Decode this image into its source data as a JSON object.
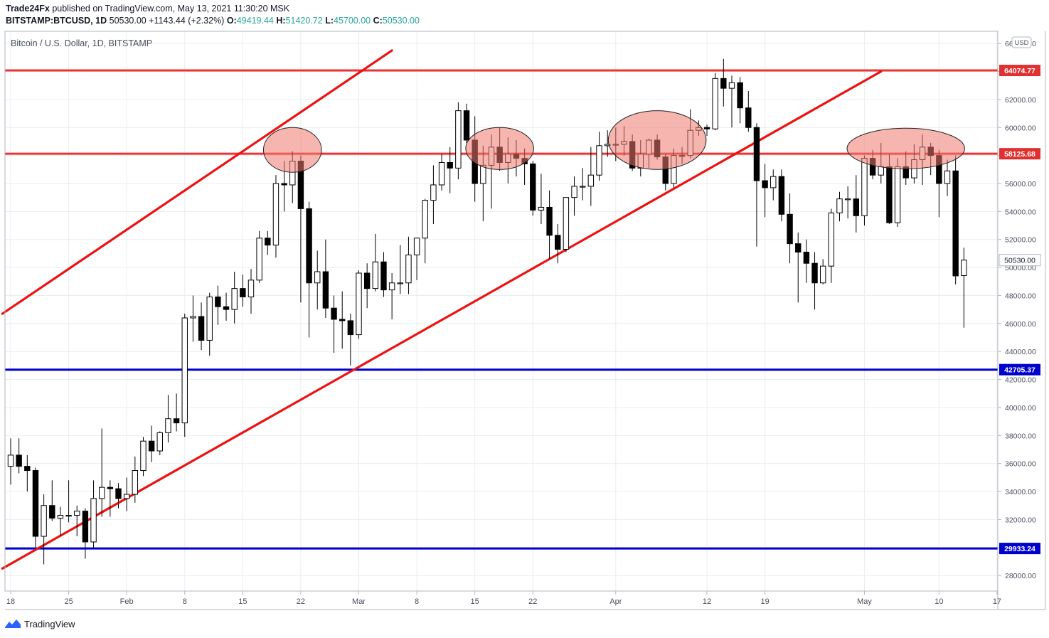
{
  "header": {
    "publisher": "Trade24Fx",
    "published_text": "published on TradingView.com, May 13, 2021 11:30:20 MSK",
    "symbol": "BITSTAMP:BTCUSD",
    "interval": "1D",
    "last": "50530.00",
    "change": "+1143.44 (+2.32%)",
    "o_label": "O:",
    "o_value": "49419.44",
    "h_label": "H:",
    "h_value": "51420.72",
    "l_label": "L:",
    "l_value": "45700.00",
    "c_label": "C:",
    "c_value": "50530.00"
  },
  "footer": {
    "brand": "TradingView"
  },
  "colors": {
    "up_body": "#ffffff",
    "down_body": "#000000",
    "candle_outline": "#000000",
    "trend_line": "#ee1111",
    "resistance": "#ee3333",
    "support": "#0000cc",
    "circle_fill": "rgba(240,120,110,0.55)",
    "grid": "#e8edf2"
  },
  "chart_data": {
    "type": "candlestick",
    "title": "Bitcoin / U.S. Dollar, 1D, BITSTAMP",
    "currency": "USD",
    "ylim": [
      26000,
      66500
    ],
    "y_ticks": [
      28000,
      30000,
      32000,
      34000,
      36000,
      38000,
      40000,
      42000,
      44000,
      46000,
      48000,
      50000,
      52000,
      54000,
      56000,
      58000,
      60000,
      62000,
      64000,
      66000
    ],
    "x_ticks": [
      {
        "label": "18",
        "day": 0
      },
      {
        "label": "25",
        "day": 7
      },
      {
        "label": "Feb",
        "day": 14
      },
      {
        "label": "8",
        "day": 21
      },
      {
        "label": "15",
        "day": 28
      },
      {
        "label": "22",
        "day": 35
      },
      {
        "label": "Mar",
        "day": 42
      },
      {
        "label": "8",
        "day": 49
      },
      {
        "label": "15",
        "day": 56
      },
      {
        "label": "22",
        "day": 63
      },
      {
        "label": "Apr",
        "day": 73
      },
      {
        "label": "12",
        "day": 84
      },
      {
        "label": "19",
        "day": 91
      },
      {
        "label": "May",
        "day": 103
      },
      {
        "label": "10",
        "day": 112
      },
      {
        "label": "17",
        "day": 119
      }
    ],
    "candles": [
      {
        "day": -1,
        "o": 35800,
        "h": 36500,
        "l": 34800,
        "c": 35900
      },
      {
        "day": 0,
        "o": 35800,
        "h": 37800,
        "l": 34500,
        "c": 36600
      },
      {
        "day": 1,
        "o": 36600,
        "h": 37800,
        "l": 35300,
        "c": 35800
      },
      {
        "day": 2,
        "o": 35800,
        "h": 36600,
        "l": 34000,
        "c": 35500
      },
      {
        "day": 3,
        "o": 35500,
        "h": 35700,
        "l": 30000,
        "c": 30800
      },
      {
        "day": 4,
        "o": 30800,
        "h": 33800,
        "l": 28800,
        "c": 33000
      },
      {
        "day": 5,
        "o": 33000,
        "h": 34800,
        "l": 31900,
        "c": 32100
      },
      {
        "day": 6,
        "o": 32100,
        "h": 32900,
        "l": 30800,
        "c": 32300
      },
      {
        "day": 7,
        "o": 32300,
        "h": 34800,
        "l": 31800,
        "c": 32300
      },
      {
        "day": 8,
        "o": 32300,
        "h": 33000,
        "l": 30800,
        "c": 32600
      },
      {
        "day": 9,
        "o": 32600,
        "h": 32800,
        "l": 29200,
        "c": 30400
      },
      {
        "day": 10,
        "o": 30400,
        "h": 34800,
        "l": 30000,
        "c": 33500
      },
      {
        "day": 11,
        "o": 33500,
        "h": 38500,
        "l": 32200,
        "c": 34300
      },
      {
        "day": 12,
        "o": 34300,
        "h": 34800,
        "l": 32200,
        "c": 34200
      },
      {
        "day": 13,
        "o": 34200,
        "h": 34600,
        "l": 32800,
        "c": 33500
      },
      {
        "day": 14,
        "o": 33500,
        "h": 35000,
        "l": 32600,
        "c": 33800
      },
      {
        "day": 15,
        "o": 33800,
        "h": 36500,
        "l": 33200,
        "c": 35500
      },
      {
        "day": 16,
        "o": 35500,
        "h": 37900,
        "l": 35100,
        "c": 37600
      },
      {
        "day": 17,
        "o": 37600,
        "h": 38700,
        "l": 36100,
        "c": 36900
      },
      {
        "day": 18,
        "o": 36900,
        "h": 38300,
        "l": 36600,
        "c": 38200
      },
      {
        "day": 19,
        "o": 38200,
        "h": 40900,
        "l": 37500,
        "c": 39200
      },
      {
        "day": 20,
        "o": 39200,
        "h": 41000,
        "l": 38300,
        "c": 38900
      },
      {
        "day": 21,
        "o": 38900,
        "h": 46700,
        "l": 37900,
        "c": 46400
      },
      {
        "day": 22,
        "o": 46400,
        "h": 48000,
        "l": 44700,
        "c": 46500
      },
      {
        "day": 23,
        "o": 46500,
        "h": 47500,
        "l": 44100,
        "c": 44800
      },
      {
        "day": 24,
        "o": 44800,
        "h": 48200,
        "l": 43700,
        "c": 47900
      },
      {
        "day": 25,
        "o": 47900,
        "h": 48700,
        "l": 45900,
        "c": 47200
      },
      {
        "day": 26,
        "o": 47200,
        "h": 48200,
        "l": 46200,
        "c": 47000
      },
      {
        "day": 27,
        "o": 47000,
        "h": 49700,
        "l": 46000,
        "c": 48500
      },
      {
        "day": 28,
        "o": 48500,
        "h": 49500,
        "l": 47200,
        "c": 47900
      },
      {
        "day": 29,
        "o": 47900,
        "h": 49900,
        "l": 46700,
        "c": 49100
      },
      {
        "day": 30,
        "o": 49100,
        "h": 52600,
        "l": 48900,
        "c": 52100
      },
      {
        "day": 31,
        "o": 52100,
        "h": 52600,
        "l": 50900,
        "c": 51600
      },
      {
        "day": 32,
        "o": 51600,
        "h": 56600,
        "l": 50700,
        "c": 56000
      },
      {
        "day": 33,
        "o": 56000,
        "h": 57600,
        "l": 54000,
        "c": 55900
      },
      {
        "day": 34,
        "o": 55900,
        "h": 58300,
        "l": 54600,
        "c": 57600
      },
      {
        "day": 35,
        "o": 57600,
        "h": 58000,
        "l": 47500,
        "c": 54200
      },
      {
        "day": 36,
        "o": 54200,
        "h": 54700,
        "l": 45000,
        "c": 48900
      },
      {
        "day": 37,
        "o": 48900,
        "h": 51200,
        "l": 47000,
        "c": 49700
      },
      {
        "day": 38,
        "o": 49700,
        "h": 52000,
        "l": 46400,
        "c": 47100
      },
      {
        "day": 39,
        "o": 47100,
        "h": 48000,
        "l": 43900,
        "c": 46300
      },
      {
        "day": 40,
        "o": 46300,
        "h": 48300,
        "l": 44200,
        "c": 46200
      },
      {
        "day": 41,
        "o": 46200,
        "h": 46700,
        "l": 43000,
        "c": 45200
      },
      {
        "day": 42,
        "o": 45200,
        "h": 49800,
        "l": 44900,
        "c": 49600
      },
      {
        "day": 43,
        "o": 49600,
        "h": 50300,
        "l": 47100,
        "c": 48500
      },
      {
        "day": 44,
        "o": 48500,
        "h": 52400,
        "l": 48300,
        "c": 50400
      },
      {
        "day": 45,
        "o": 50400,
        "h": 51100,
        "l": 47900,
        "c": 48400
      },
      {
        "day": 46,
        "o": 48400,
        "h": 49600,
        "l": 46300,
        "c": 48900
      },
      {
        "day": 47,
        "o": 48900,
        "h": 51600,
        "l": 48100,
        "c": 48900
      },
      {
        "day": 48,
        "o": 48900,
        "h": 52200,
        "l": 48100,
        "c": 50900
      },
      {
        "day": 49,
        "o": 50900,
        "h": 52100,
        "l": 49100,
        "c": 52100
      },
      {
        "day": 50,
        "o": 52100,
        "h": 54900,
        "l": 50300,
        "c": 54800
      },
      {
        "day": 51,
        "o": 54800,
        "h": 57300,
        "l": 53100,
        "c": 55900
      },
      {
        "day": 52,
        "o": 55900,
        "h": 58100,
        "l": 55500,
        "c": 57500
      },
      {
        "day": 53,
        "o": 57500,
        "h": 58600,
        "l": 55300,
        "c": 57100
      },
      {
        "day": 54,
        "o": 57100,
        "h": 61800,
        "l": 56300,
        "c": 61200
      },
      {
        "day": 55,
        "o": 61200,
        "h": 61700,
        "l": 58900,
        "c": 59100
      },
      {
        "day": 56,
        "o": 59100,
        "h": 60800,
        "l": 54700,
        "c": 56000
      },
      {
        "day": 57,
        "o": 56000,
        "h": 58700,
        "l": 53300,
        "c": 57300
      },
      {
        "day": 58,
        "o": 57300,
        "h": 59500,
        "l": 54200,
        "c": 58600
      },
      {
        "day": 59,
        "o": 58600,
        "h": 60000,
        "l": 56900,
        "c": 57500
      },
      {
        "day": 60,
        "o": 57500,
        "h": 59300,
        "l": 56000,
        "c": 58100
      },
      {
        "day": 61,
        "o": 58100,
        "h": 59100,
        "l": 56500,
        "c": 57800
      },
      {
        "day": 62,
        "o": 57800,
        "h": 58500,
        "l": 55900,
        "c": 57400
      },
      {
        "day": 63,
        "o": 57400,
        "h": 57600,
        "l": 53700,
        "c": 54100
      },
      {
        "day": 64,
        "o": 54100,
        "h": 56700,
        "l": 53100,
        "c": 54300
      },
      {
        "day": 65,
        "o": 54300,
        "h": 55500,
        "l": 50600,
        "c": 52300
      },
      {
        "day": 66,
        "o": 52300,
        "h": 53100,
        "l": 50300,
        "c": 51300
      },
      {
        "day": 67,
        "o": 51300,
        "h": 55000,
        "l": 51100,
        "c": 55000
      },
      {
        "day": 68,
        "o": 55000,
        "h": 56500,
        "l": 53700,
        "c": 55800
      },
      {
        "day": 69,
        "o": 55800,
        "h": 57100,
        "l": 54800,
        "c": 55800
      },
      {
        "day": 70,
        "o": 55800,
        "h": 58600,
        "l": 54400,
        "c": 56600
      },
      {
        "day": 71,
        "o": 56600,
        "h": 59700,
        "l": 56200,
        "c": 58700
      },
      {
        "day": 72,
        "o": 58700,
        "h": 59800,
        "l": 57900,
        "c": 58800
      },
      {
        "day": 73,
        "o": 58800,
        "h": 60000,
        "l": 57600,
        "c": 58800
      },
      {
        "day": 74,
        "o": 58800,
        "h": 60100,
        "l": 58000,
        "c": 59000
      },
      {
        "day": 75,
        "o": 59000,
        "h": 59500,
        "l": 56900,
        "c": 57100
      },
      {
        "day": 76,
        "o": 57100,
        "h": 59100,
        "l": 56500,
        "c": 58100
      },
      {
        "day": 77,
        "o": 58100,
        "h": 59200,
        "l": 57100,
        "c": 59100
      },
      {
        "day": 78,
        "o": 59100,
        "h": 59500,
        "l": 57700,
        "c": 57900
      },
      {
        "day": 79,
        "o": 57900,
        "h": 58100,
        "l": 55500,
        "c": 56000
      },
      {
        "day": 80,
        "o": 56000,
        "h": 58500,
        "l": 55700,
        "c": 58000
      },
      {
        "day": 81,
        "o": 58000,
        "h": 58600,
        "l": 57400,
        "c": 58000
      },
      {
        "day": 82,
        "o": 58000,
        "h": 61300,
        "l": 57800,
        "c": 59800
      },
      {
        "day": 83,
        "o": 59800,
        "h": 60500,
        "l": 59400,
        "c": 60000
      },
      {
        "day": 84,
        "o": 60000,
        "h": 60200,
        "l": 59400,
        "c": 59900
      },
      {
        "day": 85,
        "o": 59900,
        "h": 63900,
        "l": 59800,
        "c": 63500
      },
      {
        "day": 86,
        "o": 63500,
        "h": 64900,
        "l": 61500,
        "c": 62800
      },
      {
        "day": 87,
        "o": 62800,
        "h": 63700,
        "l": 60000,
        "c": 63200
      },
      {
        "day": 88,
        "o": 63200,
        "h": 63600,
        "l": 60300,
        "c": 61400
      },
      {
        "day": 89,
        "o": 61400,
        "h": 62600,
        "l": 59700,
        "c": 60000
      },
      {
        "day": 90,
        "o": 60000,
        "h": 60300,
        "l": 51500,
        "c": 56200
      },
      {
        "day": 91,
        "o": 56200,
        "h": 57400,
        "l": 53600,
        "c": 55700
      },
      {
        "day": 92,
        "o": 55700,
        "h": 57000,
        "l": 54800,
        "c": 56500
      },
      {
        "day": 93,
        "o": 56500,
        "h": 57000,
        "l": 53300,
        "c": 53800
      },
      {
        "day": 94,
        "o": 53800,
        "h": 55300,
        "l": 50300,
        "c": 51700
      },
      {
        "day": 95,
        "o": 51700,
        "h": 52500,
        "l": 47500,
        "c": 51100
      },
      {
        "day": 96,
        "o": 51100,
        "h": 52000,
        "l": 48900,
        "c": 50300
      },
      {
        "day": 97,
        "o": 50300,
        "h": 51100,
        "l": 47000,
        "c": 48900
      },
      {
        "day": 98,
        "o": 48900,
        "h": 50600,
        "l": 48800,
        "c": 50100
      },
      {
        "day": 99,
        "o": 50100,
        "h": 54200,
        "l": 48900,
        "c": 53900
      },
      {
        "day": 100,
        "o": 53900,
        "h": 55400,
        "l": 53300,
        "c": 54900
      },
      {
        "day": 101,
        "o": 54900,
        "h": 55800,
        "l": 53500,
        "c": 54900
      },
      {
        "day": 102,
        "o": 54900,
        "h": 56600,
        "l": 52500,
        "c": 53700
      },
      {
        "day": 103,
        "o": 53700,
        "h": 58000,
        "l": 53000,
        "c": 57800
      },
      {
        "day": 104,
        "o": 57800,
        "h": 58400,
        "l": 56300,
        "c": 56600
      },
      {
        "day": 105,
        "o": 56600,
        "h": 58900,
        "l": 56000,
        "c": 57200
      },
      {
        "day": 106,
        "o": 57200,
        "h": 58100,
        "l": 53100,
        "c": 53200
      },
      {
        "day": 107,
        "o": 53200,
        "h": 57800,
        "l": 52900,
        "c": 57200
      },
      {
        "day": 108,
        "o": 57200,
        "h": 58300,
        "l": 55900,
        "c": 56400
      },
      {
        "day": 109,
        "o": 56400,
        "h": 58800,
        "l": 56000,
        "c": 57700
      },
      {
        "day": 110,
        "o": 57700,
        "h": 59500,
        "l": 55900,
        "c": 58600
      },
      {
        "day": 111,
        "o": 58600,
        "h": 58900,
        "l": 56600,
        "c": 58000
      },
      {
        "day": 112,
        "o": 58000,
        "h": 58400,
        "l": 53600,
        "c": 56000
      },
      {
        "day": 113,
        "o": 56000,
        "h": 57700,
        "l": 55100,
        "c": 56900
      },
      {
        "day": 114,
        "o": 56900,
        "h": 58000,
        "l": 48800,
        "c": 49400
      },
      {
        "day": 115,
        "o": 49419.44,
        "h": 51420.72,
        "l": 45700.0,
        "c": 50530.0
      }
    ],
    "horizontal_levels": [
      {
        "price": 64074.77,
        "label": "64074.77",
        "role": "resistance"
      },
      {
        "price": 58125.68,
        "label": "58125.68",
        "role": "resistance"
      },
      {
        "price": 42705.37,
        "label": "42705.37",
        "role": "support"
      },
      {
        "price": 29933.24,
        "label": "29933.24",
        "role": "support"
      }
    ],
    "last_price_label": "50530.00",
    "trend_lines": [
      {
        "from": {
          "day": -1,
          "price": 46700
        },
        "to": {
          "day": 46,
          "price": 65500
        }
      },
      {
        "from": {
          "day": -1,
          "price": 28500
        },
        "to": {
          "day": 105,
          "price": 64000
        }
      }
    ],
    "highlight_ellipses": [
      {
        "day": 34,
        "price": 58400,
        "rx_days": 3.5,
        "ry_price": 1600
      },
      {
        "day": 59,
        "price": 58500,
        "rx_days": 4.1,
        "ry_price": 1500
      },
      {
        "day": 78,
        "price": 59100,
        "rx_days": 5.9,
        "ry_price": 2100
      },
      {
        "day": 108,
        "price": 58500,
        "rx_days": 7.1,
        "ry_price": 1450
      }
    ]
  }
}
